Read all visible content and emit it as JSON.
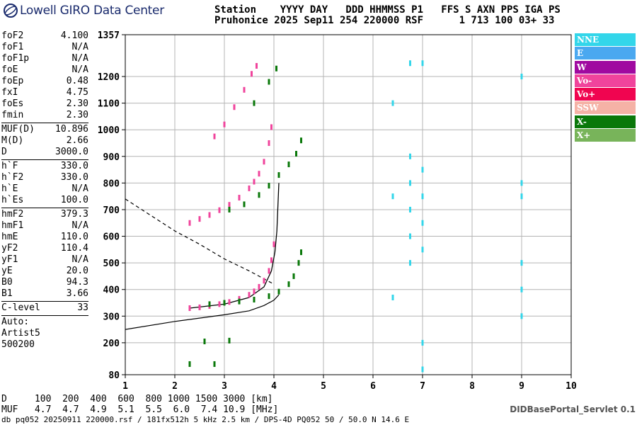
{
  "brand": {
    "name": "Lowell GIRO Data Center"
  },
  "header": {
    "line1": "Station    YYYY DAY   DDD HHMMSS P1   FFS S AXN PPS IGA PS",
    "line2": "Pruhonice 2025 Sep11 254 220000 RSF      1 713 100 03+ 33"
  },
  "params": [
    {
      "label": "foF2",
      "value": "4.100"
    },
    {
      "label": "foF1",
      "value": "N/A"
    },
    {
      "label": "foF1p",
      "value": "N/A"
    },
    {
      "label": "foE",
      "value": "N/A"
    },
    {
      "label": "foEp",
      "value": "0.48"
    },
    {
      "label": "fxI",
      "value": "4.75"
    },
    {
      "label": "foEs",
      "value": "2.30"
    },
    {
      "label": "fmin",
      "value": "2.30"
    },
    {
      "label": "MUF(D)",
      "value": "10.896",
      "sep": true
    },
    {
      "label": "M(D)",
      "value": "2.66"
    },
    {
      "label": "D",
      "value": "3000.0"
    },
    {
      "label": "h`F",
      "value": "330.0",
      "sep": true
    },
    {
      "label": "h`F2",
      "value": "330.0"
    },
    {
      "label": "h`E",
      "value": "N/A"
    },
    {
      "label": "h`Es",
      "value": "100.0"
    },
    {
      "label": "hmF2",
      "value": "379.3",
      "sep": true
    },
    {
      "label": "hmF1",
      "value": "N/A"
    },
    {
      "label": "hmE",
      "value": "110.0"
    },
    {
      "label": "yF2",
      "value": "110.4"
    },
    {
      "label": "yF1",
      "value": "N/A"
    },
    {
      "label": "yE",
      "value": "20.0"
    },
    {
      "label": "B0",
      "value": "94.3"
    },
    {
      "label": "B1",
      "value": "3.66"
    },
    {
      "label": "C-level",
      "value": "33",
      "sep": true
    }
  ],
  "auto": {
    "line1": "Auto:",
    "line2": "Artist5",
    "line3": "500200"
  },
  "legend": [
    {
      "label": "NNE",
      "color": "#33d6ea"
    },
    {
      "label": "E",
      "color": "#4aa8f0"
    },
    {
      "label": "W",
      "color": "#a00aa0"
    },
    {
      "label": "Vo-",
      "color": "#f0449c"
    },
    {
      "label": "Vo+",
      "color": "#f00550"
    },
    {
      "label": "SSW",
      "color": "#f5b2a6"
    },
    {
      "label": "X-",
      "color": "#0a780a"
    },
    {
      "label": "X+",
      "color": "#78b45a"
    }
  ],
  "muf_table": {
    "row1": "D     100  200  400  600  800 1000 1500 3000 [km]",
    "row2": "MUF   4.7  4.7  4.9  5.1  5.5  6.0  7.4 10.9 [MHz]"
  },
  "footer": {
    "text": "db pq052 20250911 220000.rsf / 181fx512h 5 kHz 2.5 km / DPS-4D PQ052 50 / 50.0 N 14.6 E"
  },
  "servlet": {
    "label": "DIDBasePortal_Servlet 0.1"
  },
  "chart_data": {
    "type": "scatter",
    "xlim": [
      1,
      10
    ],
    "ylim": [
      80,
      1357
    ],
    "x_ticks": [
      "1",
      "2",
      "3",
      "4",
      "5",
      "6",
      "7",
      "8",
      "9",
      "10"
    ],
    "y_ticks": [
      "80",
      "200",
      "300",
      "400",
      "500",
      "600",
      "700",
      "800",
      "900",
      "1000",
      "1100",
      "1200",
      "1357"
    ],
    "series": [
      {
        "name": "Vo-",
        "color": "#f0449c",
        "points": [
          [
            2.3,
            330
          ],
          [
            2.5,
            333
          ],
          [
            2.7,
            338
          ],
          [
            2.9,
            345
          ],
          [
            3.1,
            353
          ],
          [
            3.3,
            365
          ],
          [
            3.5,
            380
          ],
          [
            3.6,
            393
          ],
          [
            3.7,
            410
          ],
          [
            3.8,
            433
          ],
          [
            3.9,
            470
          ],
          [
            3.95,
            510
          ],
          [
            4.0,
            570
          ],
          [
            2.3,
            650
          ],
          [
            2.5,
            665
          ],
          [
            2.7,
            680
          ],
          [
            2.9,
            698
          ],
          [
            3.1,
            718
          ],
          [
            3.3,
            745
          ],
          [
            3.5,
            780
          ],
          [
            3.6,
            805
          ],
          [
            3.7,
            835
          ],
          [
            3.8,
            880
          ],
          [
            3.9,
            950
          ],
          [
            3.95,
            1010
          ],
          [
            2.8,
            975
          ],
          [
            3.0,
            1020
          ],
          [
            3.2,
            1085
          ],
          [
            3.4,
            1150
          ],
          [
            3.55,
            1210
          ],
          [
            3.65,
            1240
          ]
        ]
      },
      {
        "name": "X-",
        "color": "#0a780a",
        "points": [
          [
            2.7,
            345
          ],
          [
            3.0,
            350
          ],
          [
            3.3,
            355
          ],
          [
            3.6,
            362
          ],
          [
            3.9,
            375
          ],
          [
            4.1,
            392
          ],
          [
            4.3,
            420
          ],
          [
            4.4,
            450
          ],
          [
            4.5,
            500
          ],
          [
            4.55,
            540
          ],
          [
            3.1,
            700
          ],
          [
            3.4,
            720
          ],
          [
            3.7,
            755
          ],
          [
            3.9,
            790
          ],
          [
            4.1,
            830
          ],
          [
            4.3,
            870
          ],
          [
            4.45,
            910
          ],
          [
            4.55,
            960
          ],
          [
            3.6,
            1100
          ],
          [
            3.9,
            1180
          ],
          [
            4.05,
            1230
          ],
          [
            2.6,
            205
          ],
          [
            3.1,
            208
          ],
          [
            2.3,
            120
          ],
          [
            2.8,
            120
          ]
        ]
      },
      {
        "name": "NNE",
        "color": "#33d6ea",
        "points": [
          [
            6.75,
            500
          ],
          [
            6.75,
            600
          ],
          [
            6.75,
            700
          ],
          [
            6.75,
            800
          ],
          [
            6.75,
            900
          ],
          [
            6.75,
            1250
          ],
          [
            7.0,
            100
          ],
          [
            7.0,
            200
          ],
          [
            7.0,
            550
          ],
          [
            7.0,
            650
          ],
          [
            7.0,
            750
          ],
          [
            7.0,
            850
          ],
          [
            7.0,
            1250
          ],
          [
            9.0,
            300
          ],
          [
            9.0,
            400
          ],
          [
            9.0,
            500
          ],
          [
            9.0,
            750
          ],
          [
            9.0,
            800
          ],
          [
            9.0,
            1200
          ],
          [
            6.4,
            370
          ],
          [
            6.4,
            750
          ],
          [
            6.4,
            1100
          ]
        ]
      }
    ],
    "profile": {
      "name": "electron density profile",
      "points": [
        [
          2.3,
          330
        ],
        [
          3.0,
          345
        ],
        [
          3.5,
          370
        ],
        [
          3.8,
          410
        ],
        [
          3.95,
          470
        ],
        [
          4.02,
          540
        ],
        [
          4.06,
          620
        ],
        [
          4.1,
          800
        ]
      ]
    },
    "trace_lower": {
      "points": [
        [
          1.0,
          250
        ],
        [
          2.0,
          280
        ],
        [
          3.0,
          305
        ],
        [
          3.5,
          320
        ],
        [
          3.8,
          340
        ],
        [
          4.0,
          360
        ],
        [
          4.1,
          380
        ]
      ]
    },
    "dashed": [
      {
        "points": [
          [
            1.0,
            740
          ],
          [
            1.5,
            680
          ],
          [
            2.0,
            620
          ],
          [
            2.5,
            570
          ],
          [
            3.0,
            515
          ],
          [
            3.5,
            470
          ],
          [
            4.0,
            420
          ]
        ]
      }
    ]
  }
}
